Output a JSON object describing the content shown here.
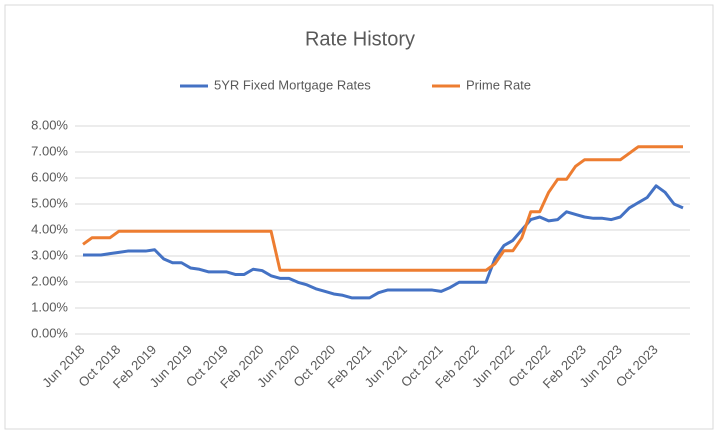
{
  "chart_data": {
    "type": "line",
    "title": "Rate History",
    "categories": [
      "Jun 2018",
      null,
      null,
      null,
      "Oct 2018",
      null,
      null,
      null,
      "Feb 2019",
      null,
      null,
      null,
      "Jun 2019",
      null,
      null,
      null,
      "Oct 2019",
      null,
      null,
      null,
      "Feb 2020",
      null,
      null,
      null,
      "Jun 2020",
      null,
      null,
      null,
      "Oct 2020",
      null,
      null,
      null,
      "Feb 2021",
      null,
      null,
      null,
      "Jun 2021",
      null,
      null,
      null,
      "Oct 2021",
      null,
      null,
      null,
      "Feb 2022",
      null,
      null,
      null,
      "Jun 2022",
      null,
      null,
      null,
      "Oct 2022",
      null,
      null,
      null,
      "Feb 2023",
      null,
      null,
      null,
      "Jun 2023",
      null,
      null,
      null,
      "Oct 2023",
      null,
      null,
      null
    ],
    "series": [
      {
        "name": "5YR Fixed Mortgage Rates",
        "color": "#4472c4",
        "values": [
          3.04,
          3.04,
          3.04,
          3.09,
          3.14,
          3.19,
          3.19,
          3.19,
          3.24,
          2.89,
          2.74,
          2.74,
          2.54,
          2.49,
          2.39,
          2.39,
          2.39,
          2.29,
          2.29,
          2.49,
          2.44,
          2.24,
          2.14,
          2.14,
          1.99,
          1.89,
          1.74,
          1.64,
          1.54,
          1.49,
          1.39,
          1.39,
          1.39,
          1.59,
          1.69,
          1.69,
          1.69,
          1.69,
          1.69,
          1.69,
          1.64,
          1.79,
          1.99,
          1.99,
          1.99,
          1.99,
          2.9,
          3.4,
          3.6,
          4.0,
          4.4,
          4.5,
          4.35,
          4.4,
          4.7,
          4.6,
          4.5,
          4.45,
          4.45,
          4.4,
          4.5,
          4.85,
          5.05,
          5.25,
          5.7,
          5.45,
          5.0,
          4.85
        ]
      },
      {
        "name": "Prime Rate",
        "color": "#ed7d31",
        "values": [
          3.45,
          3.7,
          3.7,
          3.7,
          3.95,
          3.95,
          3.95,
          3.95,
          3.95,
          3.95,
          3.95,
          3.95,
          3.95,
          3.95,
          3.95,
          3.95,
          3.95,
          3.95,
          3.95,
          3.95,
          3.95,
          3.95,
          2.45,
          2.45,
          2.45,
          2.45,
          2.45,
          2.45,
          2.45,
          2.45,
          2.45,
          2.45,
          2.45,
          2.45,
          2.45,
          2.45,
          2.45,
          2.45,
          2.45,
          2.45,
          2.45,
          2.45,
          2.45,
          2.45,
          2.45,
          2.45,
          2.7,
          3.2,
          3.2,
          3.7,
          4.7,
          4.7,
          5.45,
          5.95,
          5.95,
          6.45,
          6.7,
          6.7,
          6.7,
          6.7,
          6.7,
          6.95,
          7.2,
          7.2,
          7.2,
          7.2,
          7.2,
          7.2
        ]
      }
    ],
    "ylim": [
      0,
      8
    ],
    "yticks": [
      {
        "value": 0,
        "label": "0.00%"
      },
      {
        "value": 1,
        "label": "1.00%"
      },
      {
        "value": 2,
        "label": "2.00%"
      },
      {
        "value": 3,
        "label": "3.00%"
      },
      {
        "value": 4,
        "label": "4.00%"
      },
      {
        "value": 5,
        "label": "5.00%"
      },
      {
        "value": 6,
        "label": "6.00%"
      },
      {
        "value": 7,
        "label": "7.00%"
      },
      {
        "value": 8,
        "label": "8.00%"
      }
    ],
    "grid": true,
    "legend": "top"
  }
}
